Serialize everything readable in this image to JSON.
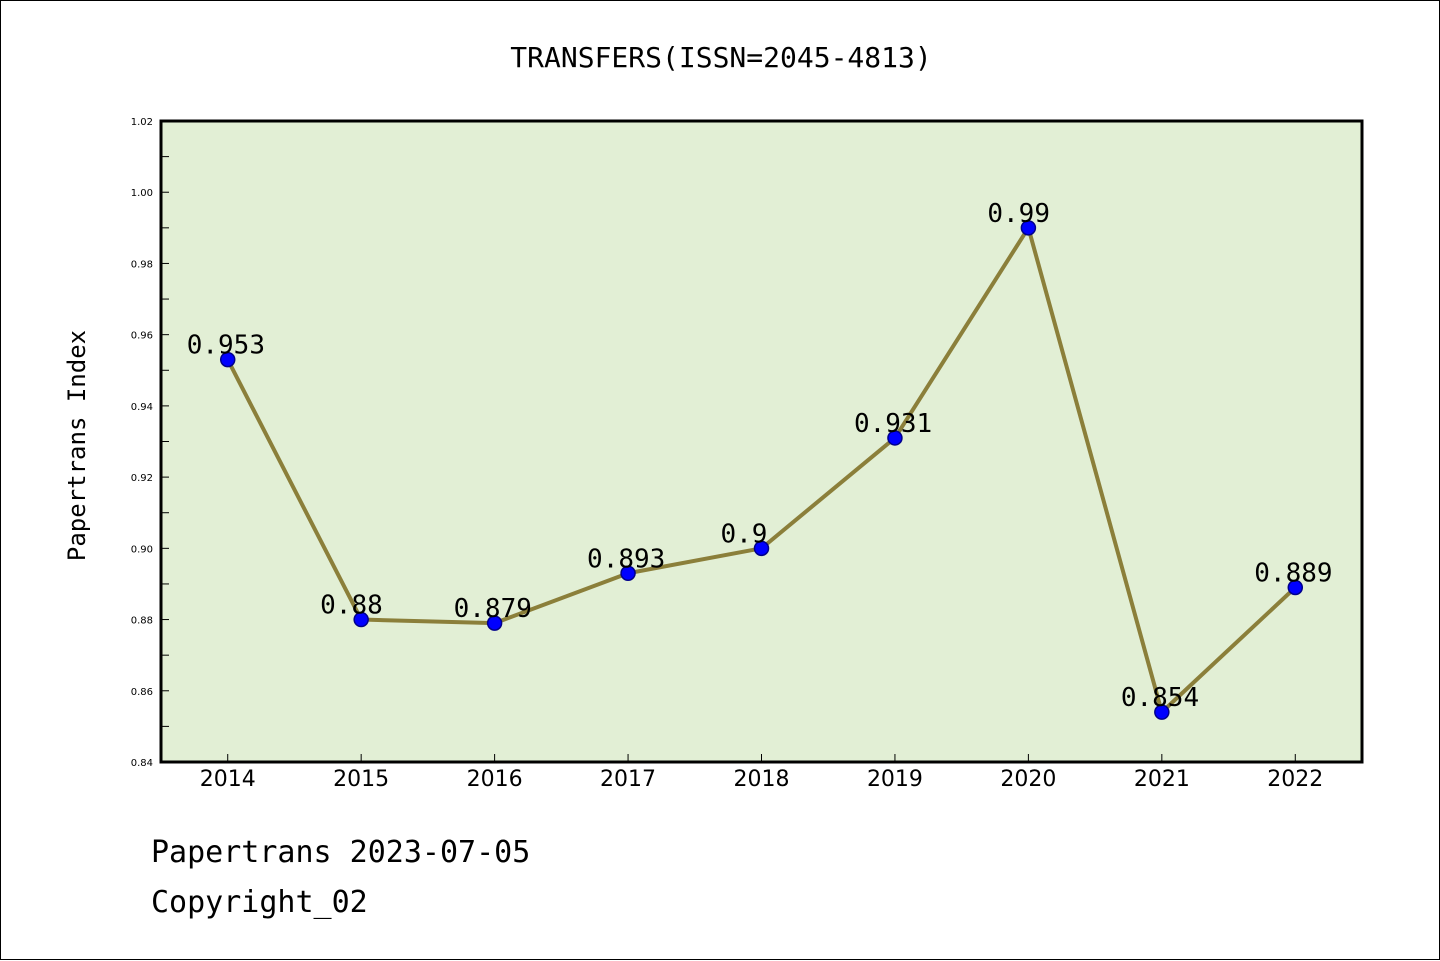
{
  "chart_data": {
    "type": "line",
    "title": "TRANSFERS(ISSN=2045-4813)",
    "xlabel": "",
    "ylabel": "Papertrans Index",
    "categories": [
      "2014",
      "2015",
      "2016",
      "2017",
      "2018",
      "2019",
      "2020",
      "2021",
      "2022"
    ],
    "values": [
      0.953,
      0.88,
      0.879,
      0.893,
      0.9,
      0.931,
      0.99,
      0.854,
      0.889
    ],
    "data_labels": [
      "0.953",
      "0.88",
      "0.879",
      "0.893",
      "0.9",
      "0.931",
      "0.99",
      "0.854",
      "0.889"
    ],
    "ylim": [
      0.84,
      1.02
    ],
    "yticks": [
      "0.84",
      "0.86",
      "0.88",
      "0.90",
      "0.92",
      "0.94",
      "0.96",
      "0.98",
      "1.00",
      "1.02"
    ],
    "grid": false,
    "legend": "none",
    "colors": {
      "plot_background": "#e2efd5",
      "line": "#8b7f3a",
      "marker_fill": "#0000ff",
      "marker_edge": "#00008b"
    }
  },
  "footer": {
    "line1": "Papertrans 2023-07-05",
    "line2": "Copyright_02"
  }
}
